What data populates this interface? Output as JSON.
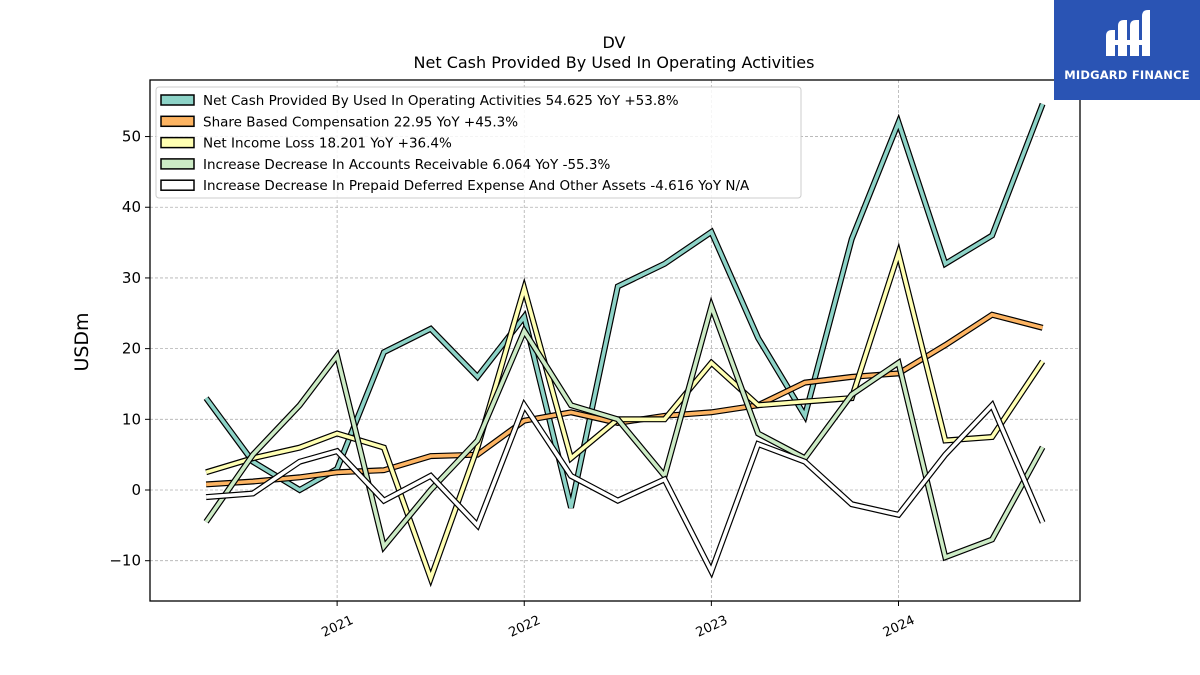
{
  "brand": {
    "name": "MIDGARD FINANCE",
    "icon": "midgard-logo-icon",
    "color": "#2a54b4"
  },
  "chart_data": {
    "type": "line",
    "title": "DV",
    "subtitle": "Net Cash Provided By Used In Operating Activities",
    "ylabel": "USDm",
    "xlabel": "",
    "ylim": [
      -15.7,
      58
    ],
    "yticks": [
      -10,
      0,
      10,
      20,
      30,
      40,
      50
    ],
    "ytick_labels": [
      "−10",
      "0",
      "10",
      "20",
      "30",
      "40",
      "50"
    ],
    "xlim": [
      2020.0,
      2024.97
    ],
    "xticks": [
      2021,
      2022,
      2023,
      2024
    ],
    "xtick_labels": [
      "2021",
      "2022",
      "2023",
      "2024"
    ],
    "grid": true,
    "legend_position": "top-left",
    "x": [
      2020.3,
      2020.55,
      2020.8,
      2021.0,
      2021.25,
      2021.5,
      2021.75,
      2022.0,
      2022.25,
      2022.5,
      2022.75,
      2023.0,
      2023.25,
      2023.5,
      2023.75,
      2024.0,
      2024.25,
      2024.5,
      2024.77
    ],
    "series": [
      {
        "name": "Net Cash Provided By Used In Operating Activities",
        "legend_label": "Net Cash Provided By Used In Operating Activities  54.625 YoY +53.8%",
        "color": "#8dd3c7",
        "values": [
          13,
          4,
          0,
          3,
          19.5,
          22.8,
          16,
          24.5,
          -2.5,
          28.8,
          32,
          36.5,
          21.5,
          10.5,
          35.5,
          52,
          32,
          36,
          54.6
        ]
      },
      {
        "name": "Share Based Compensation",
        "legend_label": "Share Based Compensation  22.95 YoY +45.3%",
        "color": "#fdb462",
        "values": [
          0.8,
          1.2,
          1.8,
          2.5,
          2.8,
          4.8,
          5,
          9.8,
          11,
          9.5,
          10.5,
          11,
          12,
          15.2,
          16,
          16.5,
          20.5,
          24.8,
          22.95
        ]
      },
      {
        "name": "Net Income Loss",
        "legend_label": "Net Income Loss  18.201 YoY +36.4%",
        "color": "#ffffb3",
        "values": [
          2.5,
          4.5,
          6,
          8,
          6,
          -12.5,
          6,
          28.5,
          4.5,
          10,
          10,
          18,
          12,
          12.5,
          13,
          33.5,
          7,
          7.5,
          18.2
        ]
      },
      {
        "name": "Increase Decrease In Accounts Receivable",
        "legend_label": "Increase Decrease In Accounts Receivable  6.064 YoY -55.3%",
        "color": "#ccebc5",
        "values": [
          -4.5,
          5,
          12,
          19,
          -8,
          0,
          7,
          22.5,
          12,
          10,
          2,
          26,
          8,
          4.5,
          13.5,
          18,
          -9.5,
          -7,
          6.06
        ]
      },
      {
        "name": "Increase Decrease In Prepaid Deferred Expense And Other Assets",
        "legend_label": "Increase Decrease In Prepaid Deferred Expense And Other Assets  -4.616 YoY N/A",
        "color": "#ffffff",
        "values": [
          -1,
          -0.5,
          4,
          5.5,
          -1.5,
          2,
          -5,
          12,
          2,
          -1.5,
          1.5,
          -11.5,
          6.5,
          4,
          -2,
          -3.5,
          5,
          12,
          -4.6
        ]
      }
    ]
  }
}
